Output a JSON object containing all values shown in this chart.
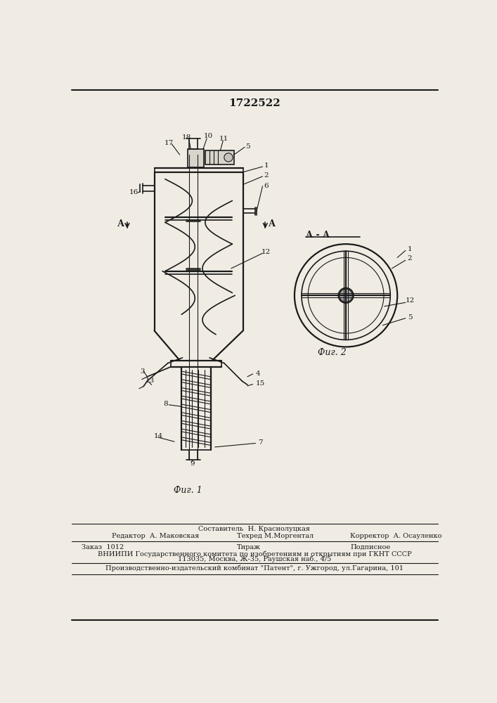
{
  "patent_number": "1722522",
  "fig1_caption": "Фиг. 1",
  "fig2_caption": "Фиг. 2",
  "section_label": "А - А",
  "bg_color": "#f0ece4",
  "line_color": "#1a1a1a",
  "footer_line0": "Составитель  Н. Краснолуцкая",
  "footer_line1_left": "Редактор  А. Маковская",
  "footer_line1_mid": "Техред М.Моргентал",
  "footer_line1_right": "Корректор  А. Осауленко",
  "footer_line2_left": "Заказ  1012",
  "footer_line2_mid": "Тираж",
  "footer_line2_right": "Подписное",
  "footer_line3": "ВНИИПИ Государственного комитета по изобретениям и открытиям при ГКНТ СССР",
  "footer_line4": "113035, Москва, Ж-35, Раушская наб., 4/5",
  "footer_line5": "Производственно-издательский комбинат \"Патент\", г. Ужгород, ул.Гагарина, 101"
}
